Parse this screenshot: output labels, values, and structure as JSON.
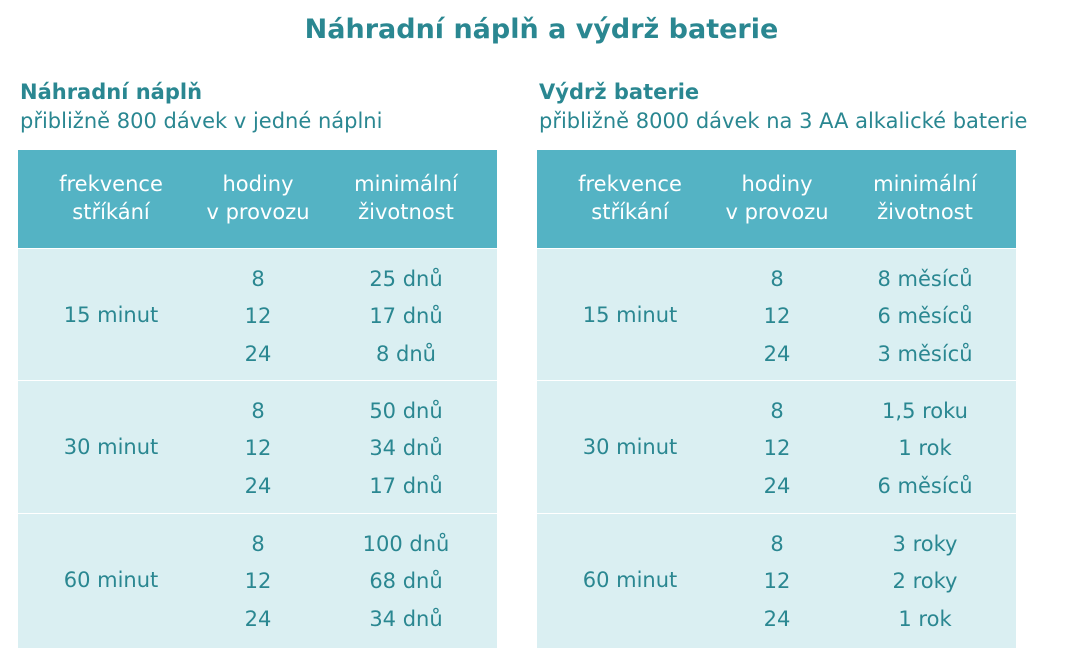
{
  "title": "Náhradní náplň a výdrž baterie",
  "headers": [
    "frekvence\nstříkání",
    "hodiny\nv provozu",
    "minimální\nživotnost"
  ],
  "left": {
    "heading": "Náhradní náplň",
    "subtitle": "přibližně 800 dávek v jedné náplni",
    "groups": [
      {
        "freq": "15 minut",
        "hours": [
          "8",
          "12",
          "24"
        ],
        "life": [
          "25 dnů",
          "17 dnů",
          "8 dnů"
        ]
      },
      {
        "freq": "30 minut",
        "hours": [
          "8",
          "12",
          "24"
        ],
        "life": [
          "50 dnů",
          "34 dnů",
          "17 dnů"
        ]
      },
      {
        "freq": "60 minut",
        "hours": [
          "8",
          "12",
          "24"
        ],
        "life": [
          "100 dnů",
          "68 dnů",
          "34 dnů"
        ]
      }
    ]
  },
  "right": {
    "heading": "Výdrž baterie",
    "subtitle": "přibližně 8000 dávek na 3 AA alkalické baterie",
    "groups": [
      {
        "freq": "15 minut",
        "hours": [
          "8",
          "12",
          "24"
        ],
        "life": [
          "8 měsíců",
          "6 měsíců",
          "3 měsíců"
        ]
      },
      {
        "freq": "30 minut",
        "hours": [
          "8",
          "12",
          "24"
        ],
        "life": [
          "1,5 roku",
          "1 rok",
          "6 měsíců"
        ]
      },
      {
        "freq": "60 minut",
        "hours": [
          "8",
          "12",
          "24"
        ],
        "life": [
          "3 roky",
          "2 roky",
          "1 rok"
        ]
      }
    ]
  },
  "colors": {
    "header": "#54b3c4",
    "body": "#daeff2",
    "text": "#2a8791"
  }
}
